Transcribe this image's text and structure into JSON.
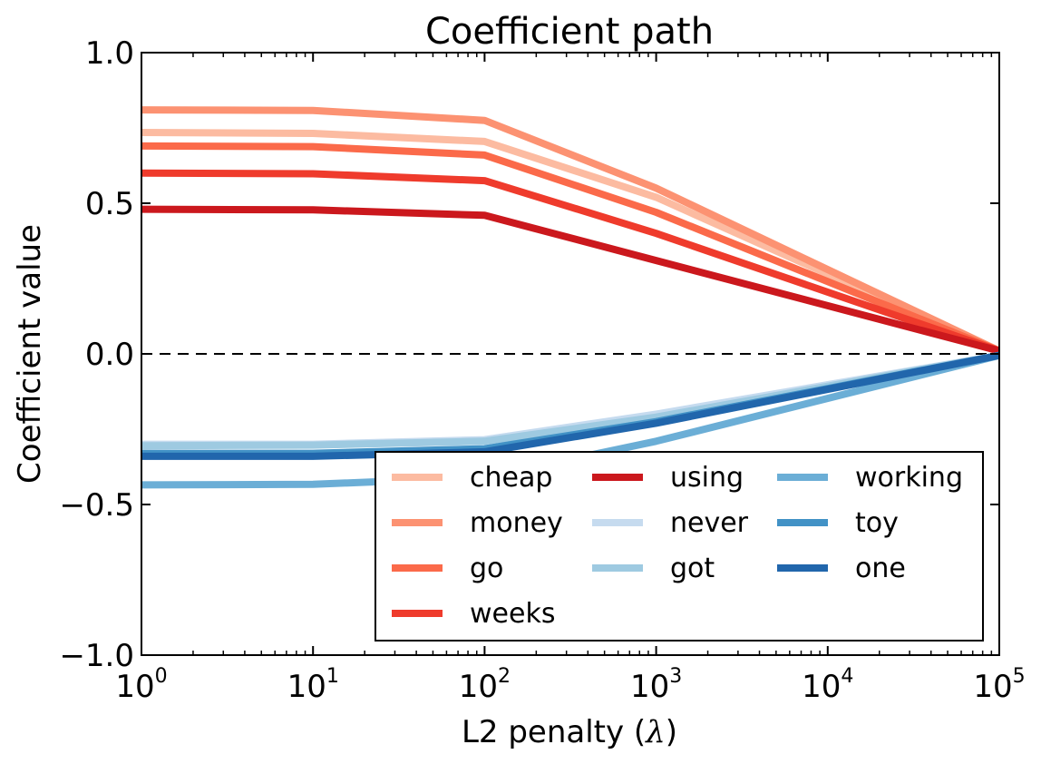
{
  "chart_data": {
    "type": "line",
    "title": "Coefficient path",
    "xlabel_main": "L2 penalty (",
    "xlabel_symbol": "λ",
    "xlabel_end": ")",
    "ylabel": "Coefficient value",
    "xscale": "log",
    "xlim": [
      1,
      100000
    ],
    "ylim": [
      -1.0,
      1.0
    ],
    "x_ticks": [
      {
        "base": "10",
        "exp": "0",
        "value": 1
      },
      {
        "base": "10",
        "exp": "1",
        "value": 10
      },
      {
        "base": "10",
        "exp": "2",
        "value": 100
      },
      {
        "base": "10",
        "exp": "3",
        "value": 1000
      },
      {
        "base": "10",
        "exp": "4",
        "value": 10000
      },
      {
        "base": "10",
        "exp": "5",
        "value": 100000
      }
    ],
    "y_ticks": [
      {
        "label": "1.0",
        "value": 1.0
      },
      {
        "label": "0.5",
        "value": 0.5
      },
      {
        "label": "0.0",
        "value": 0.0
      },
      {
        "label": "−0.5",
        "value": -0.5
      },
      {
        "label": "−1.0",
        "value": -1.0
      }
    ],
    "zero_line": true,
    "grid": false,
    "legend_position": "lower-right",
    "legend_columns": 3,
    "x": [
      1,
      10,
      100,
      1000,
      100000
    ],
    "series": [
      {
        "name": "cheap",
        "color": "#fcbba1",
        "values": [
          0.735,
          0.732,
          0.705,
          0.52,
          0.01
        ]
      },
      {
        "name": "money",
        "color": "#fc9272",
        "values": [
          0.81,
          0.808,
          0.775,
          0.55,
          0.01
        ]
      },
      {
        "name": "go",
        "color": "#fb6a4a",
        "values": [
          0.69,
          0.688,
          0.66,
          0.47,
          0.01
        ]
      },
      {
        "name": "weeks",
        "color": "#ef3b2c",
        "values": [
          0.6,
          0.598,
          0.575,
          0.4,
          0.01
        ]
      },
      {
        "name": "using",
        "color": "#cb181d",
        "values": [
          0.48,
          0.478,
          0.46,
          0.31,
          0.01
        ]
      },
      {
        "name": "never",
        "color": "#c6dbef",
        "values": [
          -0.3,
          -0.3,
          -0.285,
          -0.2,
          -0.005
        ]
      },
      {
        "name": "got",
        "color": "#9ecae1",
        "values": [
          -0.305,
          -0.303,
          -0.29,
          -0.21,
          -0.005
        ]
      },
      {
        "name": "working",
        "color": "#6baed6",
        "values": [
          -0.435,
          -0.433,
          -0.41,
          -0.29,
          -0.005
        ]
      },
      {
        "name": "toy",
        "color": "#4292c6",
        "values": [
          -0.33,
          -0.33,
          -0.315,
          -0.225,
          -0.005
        ]
      },
      {
        "name": "one",
        "color": "#2166ac",
        "values": [
          -0.34,
          -0.34,
          -0.325,
          -0.23,
          -0.005
        ]
      }
    ]
  }
}
